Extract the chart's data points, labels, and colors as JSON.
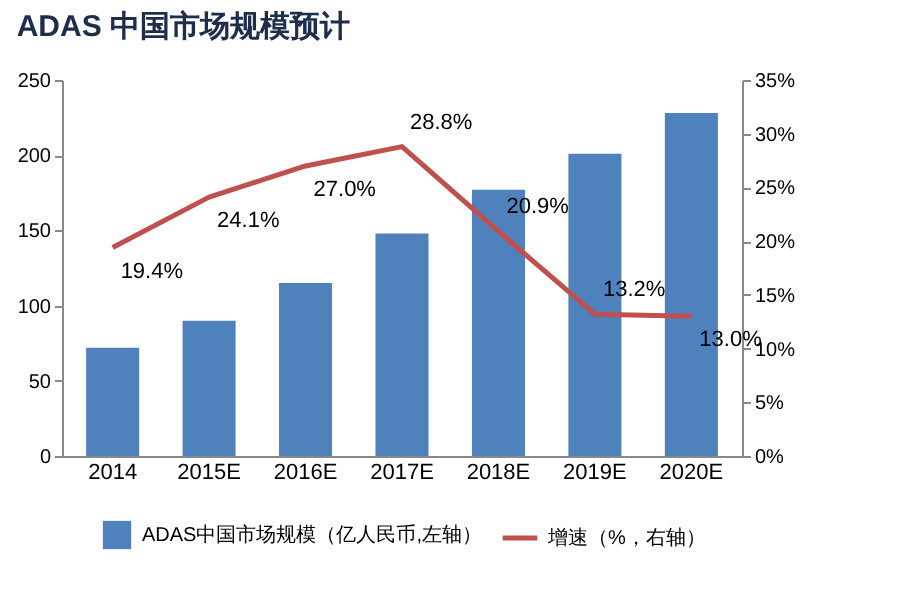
{
  "chart_data": {
    "type": "bar",
    "title": "ADAS 中国市场规模预计",
    "categories": [
      "2014",
      "2015E",
      "2016E",
      "2017E",
      "2018E",
      "2019E",
      "2020E"
    ],
    "series": [
      {
        "name": "ADAS中国市场规模（亿人民币,左轴）",
        "color": "#4f81bd",
        "values": [
          72,
          90,
          115,
          148,
          177,
          201,
          228
        ]
      },
      {
        "name": "增速（%，右轴）",
        "type": "line",
        "axis": "y2",
        "color": "#c0504d",
        "values": [
          19.4,
          24.1,
          27.0,
          28.8,
          20.9,
          13.2,
          13.0
        ],
        "value_labels": [
          "19.4%",
          "24.1%",
          "27.0%",
          "28.8%",
          "20.9%",
          "13.2%",
          "13.0%"
        ]
      }
    ],
    "ylim": [
      0,
      250
    ],
    "yticks": [
      0,
      50,
      100,
      150,
      200,
      250
    ],
    "y2lim": [
      0,
      35
    ],
    "y2ticks": [
      {
        "value": 0,
        "label": "0%"
      },
      {
        "value": 5,
        "label": "5%"
      },
      {
        "value": 10,
        "label": "10%"
      },
      {
        "value": 15,
        "label": "15%"
      },
      {
        "value": 20,
        "label": "20%"
      },
      {
        "value": 25,
        "label": "25%"
      },
      {
        "value": 30,
        "label": "30%"
      },
      {
        "value": 35,
        "label": "35%"
      }
    ],
    "legend": "bottom"
  }
}
